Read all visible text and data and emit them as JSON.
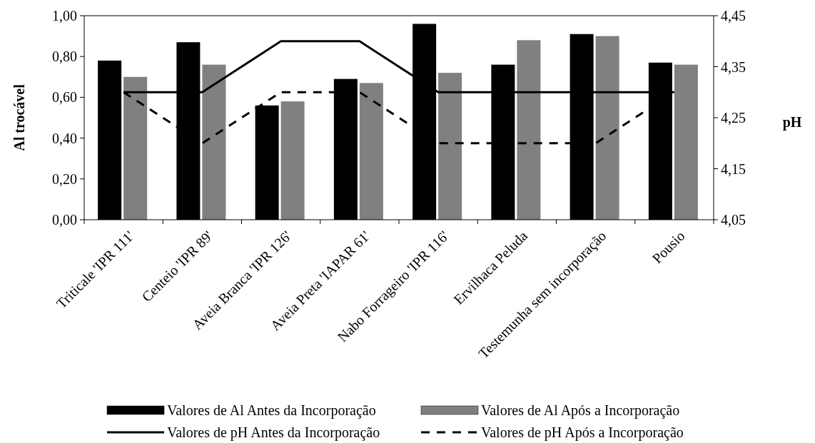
{
  "chart_data": {
    "type": "bar",
    "xlabel": null,
    "ylabel": "Al trocável",
    "y2label": "pH",
    "categories": [
      "Triticale 'IPR 111'",
      "Centeio 'IPR 89'",
      "Aveia Branca 'IPR 126'",
      "Aveia Preta 'IAPAR 61'",
      "Nabo Forrageiro 'IPR 116'",
      "Ervilhaca Peluda",
      "Testemunha sem incorporação",
      "Pousio"
    ],
    "series": [
      {
        "name": "Valores de Al Antes da Incorporação",
        "color": "#000000",
        "values": [
          0.78,
          0.87,
          0.56,
          0.69,
          0.96,
          0.76,
          0.91,
          0.77
        ]
      },
      {
        "name": "Valores de Al Após a Incorporação",
        "color": "#808080",
        "values": [
          0.7,
          0.76,
          0.58,
          0.67,
          0.72,
          0.88,
          0.9,
          0.76
        ]
      },
      {
        "name": "Valores de pH Antes da Incorporação",
        "type": "line",
        "axis": "y2",
        "color": "#000000",
        "line_style": "solid",
        "values": [
          4.3,
          4.3,
          4.4,
          4.4,
          4.3,
          4.3,
          4.3,
          4.3
        ]
      },
      {
        "name": "Valores de pH Após a Incorporação",
        "type": "line",
        "axis": "y2",
        "color": "#000000",
        "line_style": "dashed",
        "values": [
          4.3,
          4.2,
          4.3,
          4.3,
          4.2,
          4.2,
          4.2,
          4.3
        ]
      }
    ],
    "ylim": [
      0,
      1
    ],
    "yticks": [
      {
        "value": 0,
        "label": "0,00"
      },
      {
        "value": 0.2,
        "label": "0,20"
      },
      {
        "value": 0.4,
        "label": "0,40"
      },
      {
        "value": 0.6,
        "label": "0,60"
      },
      {
        "value": 0.8,
        "label": "0,80"
      },
      {
        "value": 1,
        "label": "1,00"
      }
    ],
    "y2lim": [
      4.05,
      4.45
    ],
    "y2ticks": [
      {
        "value": 4.05,
        "label": "4,05"
      },
      {
        "value": 4.15,
        "label": "4,15"
      },
      {
        "value": 4.25,
        "label": "4,25"
      },
      {
        "value": 4.35,
        "label": "4,35"
      },
      {
        "value": 4.45,
        "label": "4,45"
      }
    ],
    "grid": false,
    "legend": "bottom"
  }
}
